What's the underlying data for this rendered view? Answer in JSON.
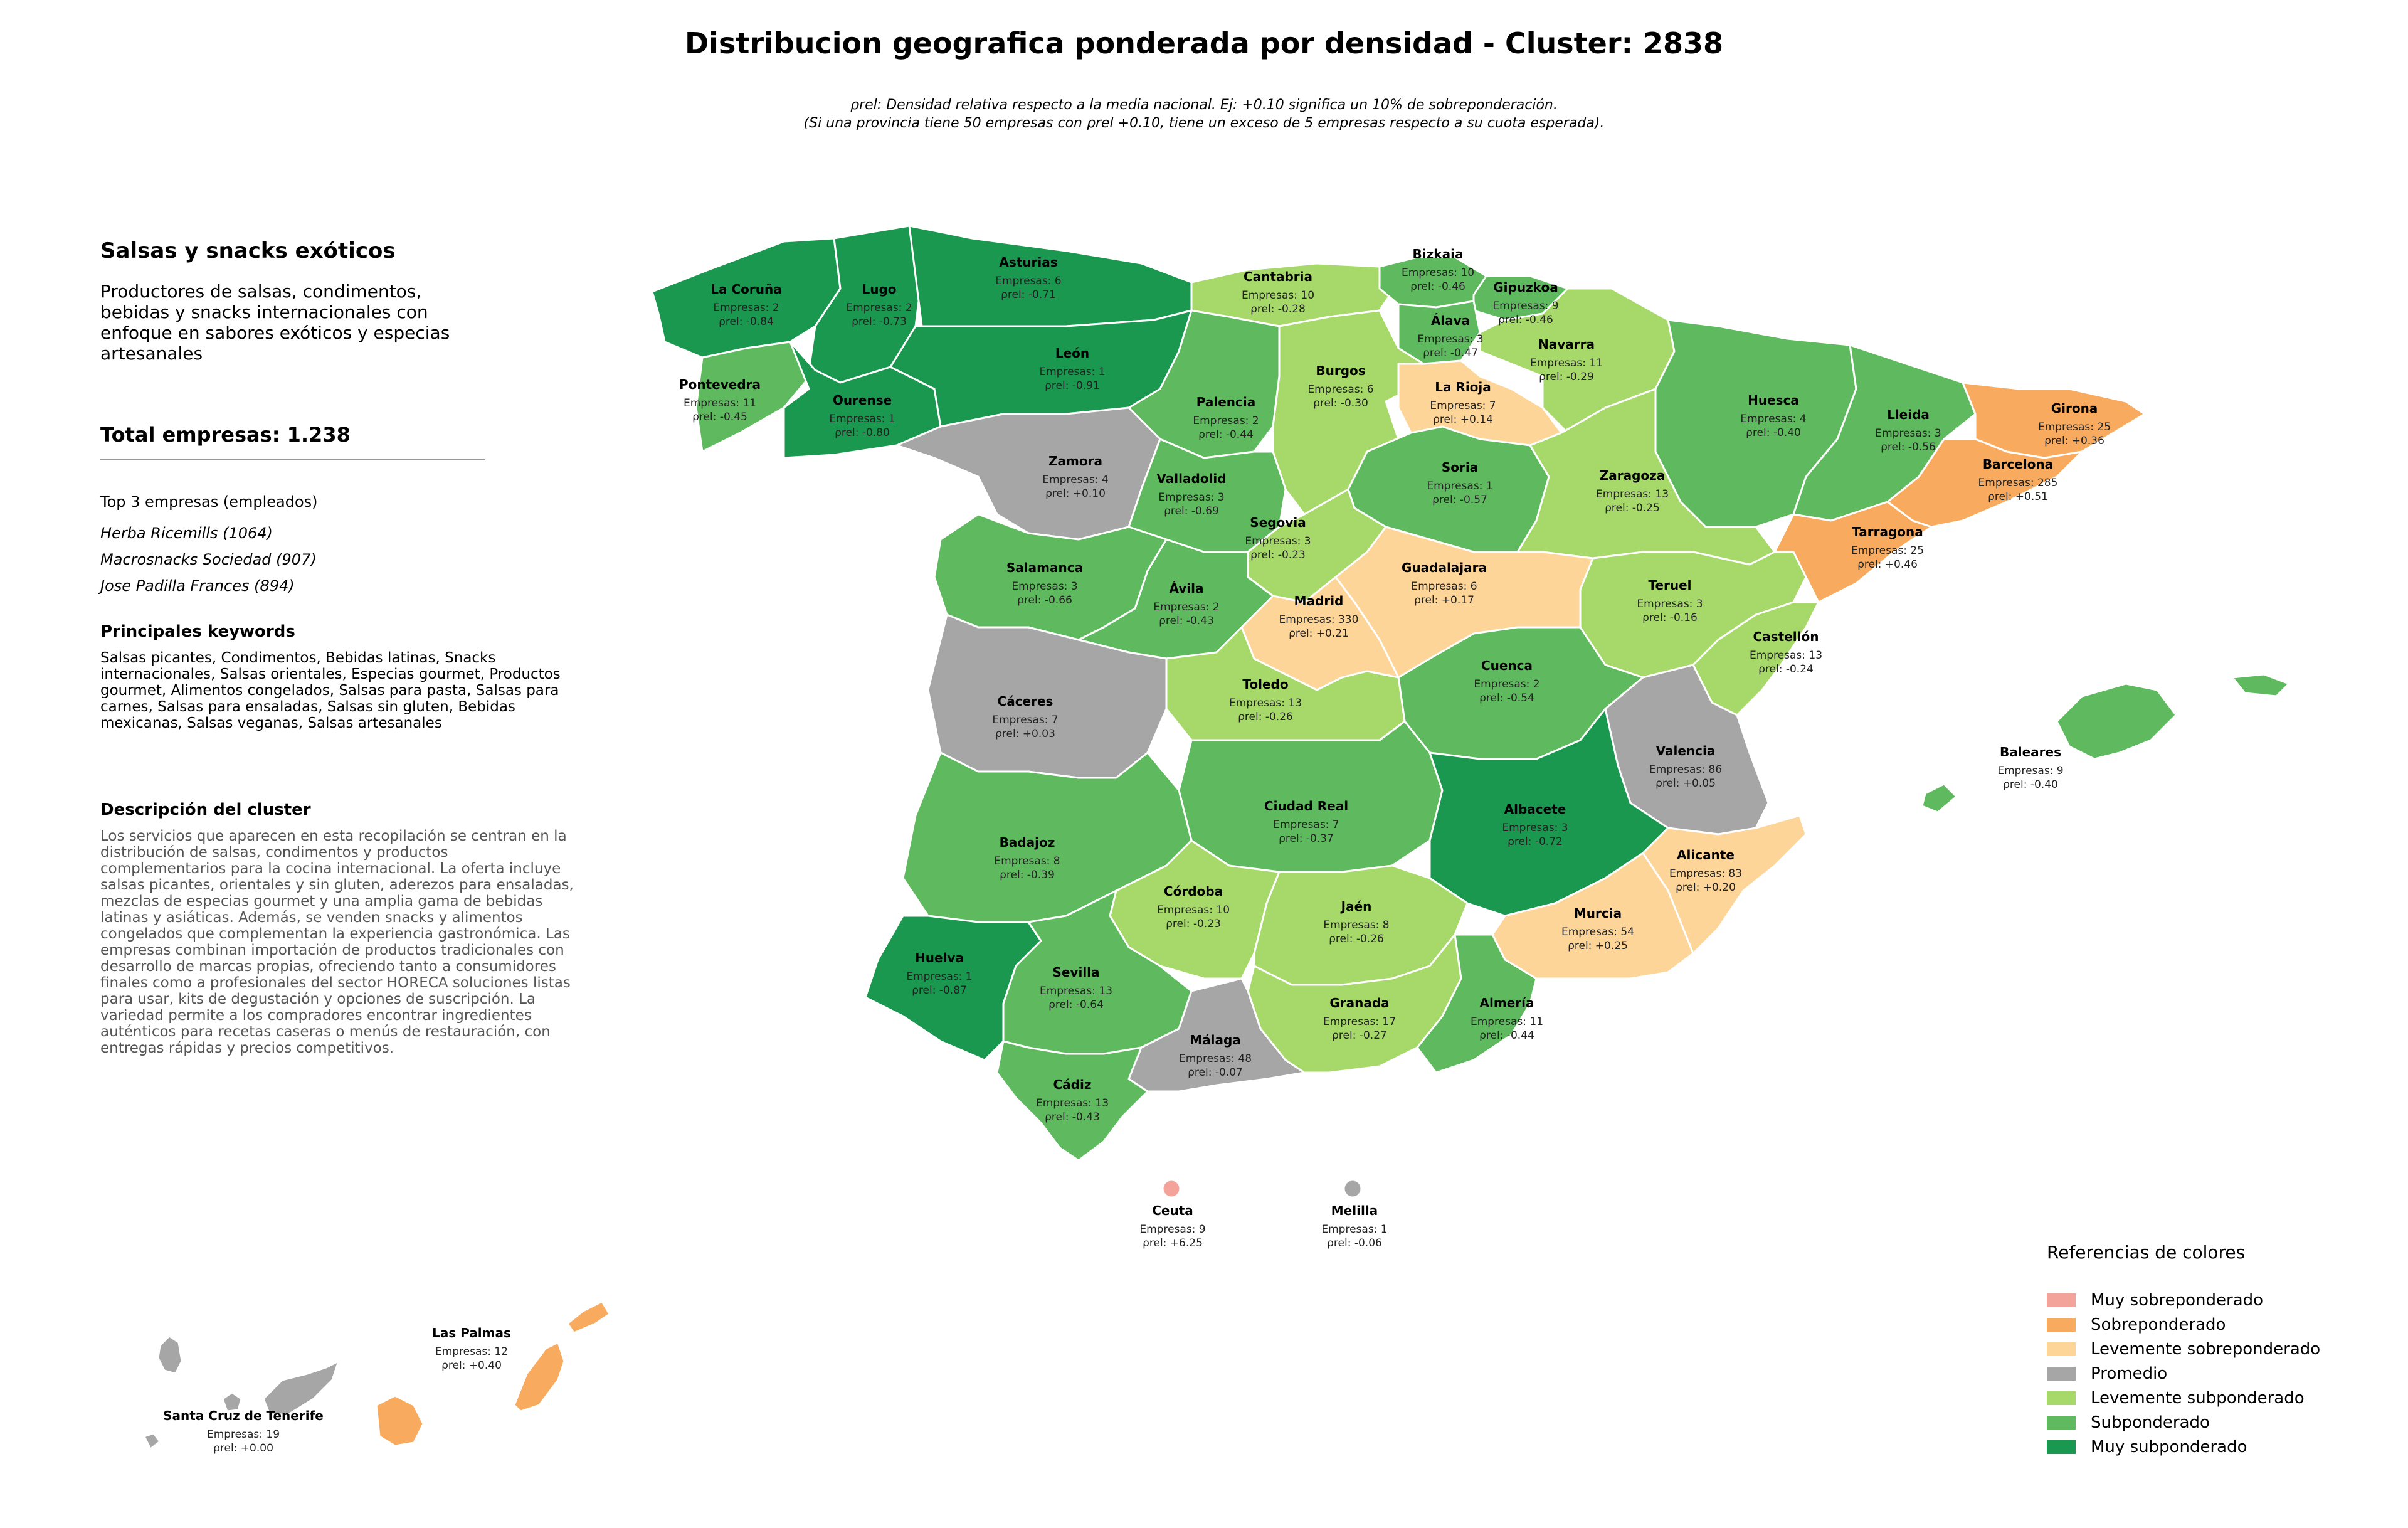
{
  "title": "Distribucion geografica ponderada por densidad - Cluster: 2838",
  "note_line1": "ρrel: Densidad relativa respecto a la media nacional. Ej: +0.10 significa un 10% de sobreponderación.",
  "note_line2": "(Si una provincia tiene 50 empresas con ρrel +0.10, tiene un exceso de 5 empresas respecto a su cuota esperada).",
  "panel": {
    "heading": "Salsas y snacks exóticos",
    "description": "Productores de salsas, condimentos, bebidas y snacks internacionales con enfoque en sabores exóticos y especias artesanales",
    "total": "Total empresas: 1.238",
    "top3_title": "Top 3 empresas (empleados)",
    "top3": [
      "Herba Ricemills (1064)",
      "Macrosnacks Sociedad (907)",
      "Jose Padilla Frances (894)"
    ],
    "keywords_title": "Principales keywords",
    "keywords": "Salsas picantes, Condimentos, Bebidas latinas, Snacks internacionales, Salsas orientales, Especias gourmet, Productos gourmet, Alimentos congelados, Salsas para pasta, Salsas para carnes, Salsas para ensaladas, Salsas sin gluten, Bebidas mexicanas, Salsas veganas, Salsas artesanales",
    "cluster_title": "Descripción del cluster",
    "cluster_desc": "Los servicios que aparecen en esta recopilación se centran en la distribución de salsas, condimentos y productos complementarios para la cocina internacional. La oferta incluye salsas picantes, orientales y sin gluten, aderezos para ensaladas, mezclas de especias gourmet y una amplia gama de bebidas latinas y asiáticas. Además, se venden snacks y alimentos congelados que complementan la experiencia gastronómica. Las empresas combinan importación de productos tradicionales con desarrollo de marcas propias, ofreciendo tanto a consumidores finales como a profesionales del sector HORECA soluciones listas para usar, kits de degustación y opciones de suscripción. La variedad permite a los compradores encontrar ingredientes auténticos para recetas caseras o menús de restauración, con entregas rápidas y precios competitivos."
  },
  "colors": {
    "muy_sobre": "#f4a39a",
    "sobre": "#f8ab5e",
    "lev_sobre": "#fdd599",
    "promedio": "#a6a6a6",
    "lev_sub": "#a6d96a",
    "sub": "#5fba5f",
    "muy_sub": "#1a9850"
  },
  "legend": {
    "title": "Referencias de colores",
    "items": [
      {
        "label": "Muy sobreponderado",
        "color": "#f4a39a"
      },
      {
        "label": "Sobreponderado",
        "color": "#f8ab5e"
      },
      {
        "label": "Levemente sobreponderado",
        "color": "#fdd599"
      },
      {
        "label": "Promedio",
        "color": "#a6a6a6"
      },
      {
        "label": "Levemente subponderado",
        "color": "#a6d96a"
      },
      {
        "label": "Subponderado",
        "color": "#5fba5f"
      },
      {
        "label": "Muy subponderado",
        "color": "#1a9850"
      }
    ]
  },
  "provinces": [
    {
      "id": "la-coruna",
      "name": "La Coruña",
      "emp": "Empresas: 2",
      "rho": "ρrel: -0.84",
      "cls": "muy_sub"
    },
    {
      "id": "lugo",
      "name": "Lugo",
      "emp": "Empresas: 2",
      "rho": "ρrel: -0.73",
      "cls": "muy_sub"
    },
    {
      "id": "asturias",
      "name": "Asturias",
      "emp": "Empresas: 6",
      "rho": "ρrel: -0.71",
      "cls": "muy_sub"
    },
    {
      "id": "cantabria",
      "name": "Cantabria",
      "emp": "Empresas: 10",
      "rho": "ρrel: -0.28",
      "cls": "lev_sub"
    },
    {
      "id": "bizkaia",
      "name": "Bizkaia",
      "emp": "Empresas: 10",
      "rho": "ρrel: -0.46",
      "cls": "sub"
    },
    {
      "id": "gipuzkoa",
      "name": "Gipuzkoa",
      "emp": "Empresas: 9",
      "rho": "ρrel: -0.46",
      "cls": "sub"
    },
    {
      "id": "alava",
      "name": "Álava",
      "emp": "Empresas: 3",
      "rho": "ρrel: -0.47",
      "cls": "sub"
    },
    {
      "id": "navarra",
      "name": "Navarra",
      "emp": "Empresas: 11",
      "rho": "ρrel: -0.29",
      "cls": "lev_sub"
    },
    {
      "id": "pontevedra",
      "name": "Pontevedra",
      "emp": "Empresas: 11",
      "rho": "ρrel: -0.45",
      "cls": "sub"
    },
    {
      "id": "ourense",
      "name": "Ourense",
      "emp": "Empresas: 1",
      "rho": "ρrel: -0.80",
      "cls": "muy_sub"
    },
    {
      "id": "leon",
      "name": "León",
      "emp": "Empresas: 1",
      "rho": "ρrel: -0.91",
      "cls": "muy_sub"
    },
    {
      "id": "palencia",
      "name": "Palencia",
      "emp": "Empresas: 2",
      "rho": "ρrel: -0.44",
      "cls": "sub"
    },
    {
      "id": "burgos",
      "name": "Burgos",
      "emp": "Empresas: 6",
      "rho": "ρrel: -0.30",
      "cls": "lev_sub"
    },
    {
      "id": "la-rioja",
      "name": "La Rioja",
      "emp": "Empresas: 7",
      "rho": "ρrel: +0.14",
      "cls": "lev_sobre"
    },
    {
      "id": "huesca",
      "name": "Huesca",
      "emp": "Empresas: 4",
      "rho": "ρrel: -0.40",
      "cls": "sub"
    },
    {
      "id": "lleida",
      "name": "Lleida",
      "emp": "Empresas: 3",
      "rho": "ρrel: -0.56",
      "cls": "sub"
    },
    {
      "id": "girona",
      "name": "Girona",
      "emp": "Empresas: 25",
      "rho": "ρrel: +0.36",
      "cls": "sobre"
    },
    {
      "id": "barcelona",
      "name": "Barcelona",
      "emp": "Empresas: 285",
      "rho": "ρrel: +0.51",
      "cls": "sobre"
    },
    {
      "id": "tarragona",
      "name": "Tarragona",
      "emp": "Empresas: 25",
      "rho": "ρrel: +0.46",
      "cls": "sobre"
    },
    {
      "id": "zamora",
      "name": "Zamora",
      "emp": "Empresas: 4",
      "rho": "ρrel: +0.10",
      "cls": "promedio"
    },
    {
      "id": "valladolid",
      "name": "Valladolid",
      "emp": "Empresas: 3",
      "rho": "ρrel: -0.69",
      "cls": "sub"
    },
    {
      "id": "soria",
      "name": "Soria",
      "emp": "Empresas: 1",
      "rho": "ρrel: -0.57",
      "cls": "sub"
    },
    {
      "id": "zaragoza",
      "name": "Zaragoza",
      "emp": "Empresas: 13",
      "rho": "ρrel: -0.25",
      "cls": "lev_sub"
    },
    {
      "id": "segovia",
      "name": "Segovia",
      "emp": "Empresas: 3",
      "rho": "ρrel: -0.23",
      "cls": "lev_sub"
    },
    {
      "id": "salamanca",
      "name": "Salamanca",
      "emp": "Empresas: 3",
      "rho": "ρrel: -0.66",
      "cls": "sub"
    },
    {
      "id": "avila",
      "name": "Ávila",
      "emp": "Empresas: 2",
      "rho": "ρrel: -0.43",
      "cls": "sub"
    },
    {
      "id": "guadalajara",
      "name": "Guadalajara",
      "emp": "Empresas: 6",
      "rho": "ρrel: +0.17",
      "cls": "lev_sobre"
    },
    {
      "id": "madrid",
      "name": "Madrid",
      "emp": "Empresas: 330",
      "rho": "ρrel: +0.21",
      "cls": "lev_sobre"
    },
    {
      "id": "teruel",
      "name": "Teruel",
      "emp": "Empresas: 3",
      "rho": "ρrel: -0.16",
      "cls": "lev_sub"
    },
    {
      "id": "castellon",
      "name": "Castellón",
      "emp": "Empresas: 13",
      "rho": "ρrel: -0.24",
      "cls": "lev_sub"
    },
    {
      "id": "cuenca",
      "name": "Cuenca",
      "emp": "Empresas: 2",
      "rho": "ρrel: -0.54",
      "cls": "sub"
    },
    {
      "id": "caceres",
      "name": "Cáceres",
      "emp": "Empresas: 7",
      "rho": "ρrel: +0.03",
      "cls": "promedio"
    },
    {
      "id": "toledo",
      "name": "Toledo",
      "emp": "Empresas: 13",
      "rho": "ρrel: -0.26",
      "cls": "lev_sub"
    },
    {
      "id": "valencia",
      "name": "Valencia",
      "emp": "Empresas: 86",
      "rho": "ρrel: +0.05",
      "cls": "promedio"
    },
    {
      "id": "baleares",
      "name": "Baleares",
      "emp": "Empresas: 9",
      "rho": "ρrel: -0.40",
      "cls": "sub"
    },
    {
      "id": "ciudad-real",
      "name": "Ciudad Real",
      "emp": "Empresas: 7",
      "rho": "ρrel: -0.37",
      "cls": "sub"
    },
    {
      "id": "albacete",
      "name": "Albacete",
      "emp": "Empresas: 3",
      "rho": "ρrel: -0.72",
      "cls": "muy_sub"
    },
    {
      "id": "badajoz",
      "name": "Badajoz",
      "emp": "Empresas: 8",
      "rho": "ρrel: -0.39",
      "cls": "sub"
    },
    {
      "id": "alicante",
      "name": "Alicante",
      "emp": "Empresas: 83",
      "rho": "ρrel: +0.20",
      "cls": "lev_sobre"
    },
    {
      "id": "cordoba",
      "name": "Córdoba",
      "emp": "Empresas: 10",
      "rho": "ρrel: -0.23",
      "cls": "lev_sub"
    },
    {
      "id": "jaen",
      "name": "Jaén",
      "emp": "Empresas: 8",
      "rho": "ρrel: -0.26",
      "cls": "lev_sub"
    },
    {
      "id": "murcia",
      "name": "Murcia",
      "emp": "Empresas: 54",
      "rho": "ρrel: +0.25",
      "cls": "lev_sobre"
    },
    {
      "id": "huelva",
      "name": "Huelva",
      "emp": "Empresas: 1",
      "rho": "ρrel: -0.87",
      "cls": "muy_sub"
    },
    {
      "id": "sevilla",
      "name": "Sevilla",
      "emp": "Empresas: 13",
      "rho": "ρrel: -0.64",
      "cls": "sub"
    },
    {
      "id": "granada",
      "name": "Granada",
      "emp": "Empresas: 17",
      "rho": "ρrel: -0.27",
      "cls": "lev_sub"
    },
    {
      "id": "almeria",
      "name": "Almería",
      "emp": "Empresas: 11",
      "rho": "ρrel: -0.44",
      "cls": "sub"
    },
    {
      "id": "malaga",
      "name": "Málaga",
      "emp": "Empresas: 48",
      "rho": "ρrel: -0.07",
      "cls": "promedio"
    },
    {
      "id": "cadiz",
      "name": "Cádiz",
      "emp": "Empresas: 13",
      "rho": "ρrel: -0.43",
      "cls": "sub"
    },
    {
      "id": "ceuta",
      "name": "Ceuta",
      "emp": "Empresas: 9",
      "rho": "ρrel: +6.25",
      "cls": "muy_sobre"
    },
    {
      "id": "melilla",
      "name": "Melilla",
      "emp": "Empresas: 1",
      "rho": "ρrel: -0.06",
      "cls": "promedio"
    },
    {
      "id": "las-palmas",
      "name": "Las Palmas",
      "emp": "Empresas: 12",
      "rho": "ρrel: +0.40",
      "cls": "sobre"
    },
    {
      "id": "santa-cruz",
      "name": "Santa Cruz de Tenerife",
      "emp": "Empresas: 19",
      "rho": "ρrel: +0.00",
      "cls": "promedio"
    }
  ]
}
